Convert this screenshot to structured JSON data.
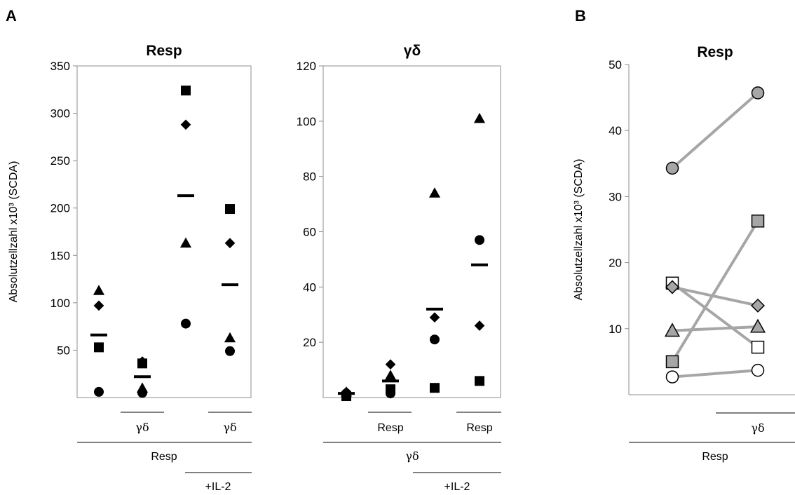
{
  "panels": {
    "A": "A",
    "B": "B"
  },
  "greek": {
    "gamma_delta": "γδ"
  },
  "chart_data": [
    {
      "type": "scatter",
      "panel": "A",
      "title": "Resp",
      "ylabel": "Absolutzellzahl  x10³ (SCDA)",
      "ylim": [
        0,
        350
      ],
      "yticks": [
        50,
        100,
        150,
        200,
        250,
        300,
        350
      ],
      "categories": [
        "Resp",
        "Resp + γδ",
        "Resp +IL-2",
        "Resp + γδ +IL-2"
      ],
      "category_labels": {
        "sub": [
          "",
          "γδ",
          "",
          "γδ"
        ],
        "main": "Resp",
        "il2": "+IL-2"
      },
      "series": [
        {
          "marker": "triangle",
          "values": [
            113,
            10,
            163,
            63
          ]
        },
        {
          "marker": "diamond",
          "values": [
            97,
            38,
            288,
            163
          ]
        },
        {
          "marker": "square",
          "values": [
            53,
            36,
            324,
            199
          ]
        },
        {
          "marker": "circle",
          "values": [
            6,
            5,
            78,
            49
          ]
        }
      ],
      "means": [
        66,
        22,
        213,
        119
      ]
    },
    {
      "type": "scatter",
      "panel": "A",
      "title": "γδ",
      "ylim": [
        0,
        120
      ],
      "yticks": [
        20,
        40,
        60,
        80,
        100,
        120
      ],
      "categories": [
        "γδ",
        "γδ + Resp",
        "γδ +IL-2",
        "γδ + Resp +IL-2"
      ],
      "category_labels": {
        "sub": [
          "",
          "Resp",
          "",
          "Resp"
        ],
        "main": "γδ",
        "il2": "+IL-2"
      },
      "series": [
        {
          "marker": "triangle",
          "values": [
            2,
            8,
            74,
            101
          ]
        },
        {
          "marker": "diamond",
          "values": [
            2,
            12,
            29,
            26
          ]
        },
        {
          "marker": "square",
          "values": [
            0.5,
            3,
            3.5,
            6
          ]
        },
        {
          "marker": "circle",
          "values": [
            1.5,
            1.5,
            21,
            57
          ]
        }
      ],
      "means": [
        1.5,
        6,
        32,
        48
      ]
    },
    {
      "type": "line",
      "panel": "B",
      "title": "Resp",
      "ylabel": "Absolutzellzahl  x10³ (SCDA)",
      "ylim": [
        0,
        50
      ],
      "yticks": [
        10,
        20,
        30,
        40,
        50
      ],
      "categories": [
        "Resp",
        "Resp + γδ"
      ],
      "category_labels": {
        "sub": [
          "",
          "γδ"
        ],
        "main": "Resp"
      },
      "series": [
        {
          "marker": "circle",
          "fill": "#a6a6a6",
          "values": [
            34.3,
            45.7
          ]
        },
        {
          "marker": "square",
          "fill": "#a6a6a6",
          "values": [
            5.0,
            26.3
          ]
        },
        {
          "marker": "square",
          "fill": "#ffffff",
          "values": [
            16.9,
            7.2
          ]
        },
        {
          "marker": "diamond",
          "fill": "#a6a6a6",
          "values": [
            16.3,
            13.5
          ]
        },
        {
          "marker": "triangle",
          "fill": "#a6a6a6",
          "values": [
            9.7,
            10.3
          ]
        },
        {
          "marker": "circle",
          "fill": "#ffffff",
          "values": [
            2.7,
            3.7
          ]
        }
      ],
      "line_color": "#a6a6a6"
    }
  ]
}
